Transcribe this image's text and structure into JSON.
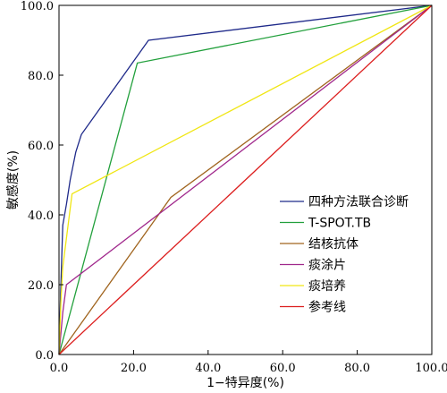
{
  "chart_data": {
    "type": "line",
    "xlabel": "1−特异度(%)",
    "ylabel": "敏感度(%)",
    "xlim": [
      0,
      100
    ],
    "ylim": [
      0,
      100
    ],
    "xticks": [
      "0.0",
      "20.0",
      "40.0",
      "60.0",
      "80.0",
      "100.0"
    ],
    "yticks": [
      "0.0",
      "20.0",
      "40.0",
      "60.0",
      "80.0",
      "100.0"
    ],
    "grid": false,
    "legend_position": "right",
    "series": [
      {
        "name": "四种方法联合诊断",
        "color": "#1f2a8a",
        "x": [
          0,
          0.5,
          1.0,
          2.0,
          3.0,
          4.5,
          6.0,
          24.0,
          100.0
        ],
        "y": [
          0,
          20.0,
          37.0,
          43.0,
          50.0,
          58.0,
          63.0,
          90.0,
          100.0
        ]
      },
      {
        "name": "T-SPOT.TB",
        "color": "#22a03c",
        "x": [
          0,
          21.0,
          100.0
        ],
        "y": [
          0,
          83.5,
          100.0
        ]
      },
      {
        "name": "结核抗体",
        "color": "#a0641e",
        "x": [
          0,
          30.0,
          100.0
        ],
        "y": [
          0,
          45.0,
          100.0
        ]
      },
      {
        "name": "痰涂片",
        "color": "#a0288c",
        "x": [
          0,
          1.0,
          2.0,
          100.0
        ],
        "y": [
          0,
          12.0,
          20.0,
          100.0
        ]
      },
      {
        "name": "痰培养",
        "color": "#f0e614",
        "x": [
          0,
          0.5,
          1.0,
          3.5,
          100.0
        ],
        "y": [
          0,
          15.0,
          25.0,
          46.0,
          100.0
        ]
      },
      {
        "name": "参考线",
        "color": "#dc1e1e",
        "x": [
          0,
          100.0
        ],
        "y": [
          0,
          100.0
        ]
      }
    ]
  }
}
